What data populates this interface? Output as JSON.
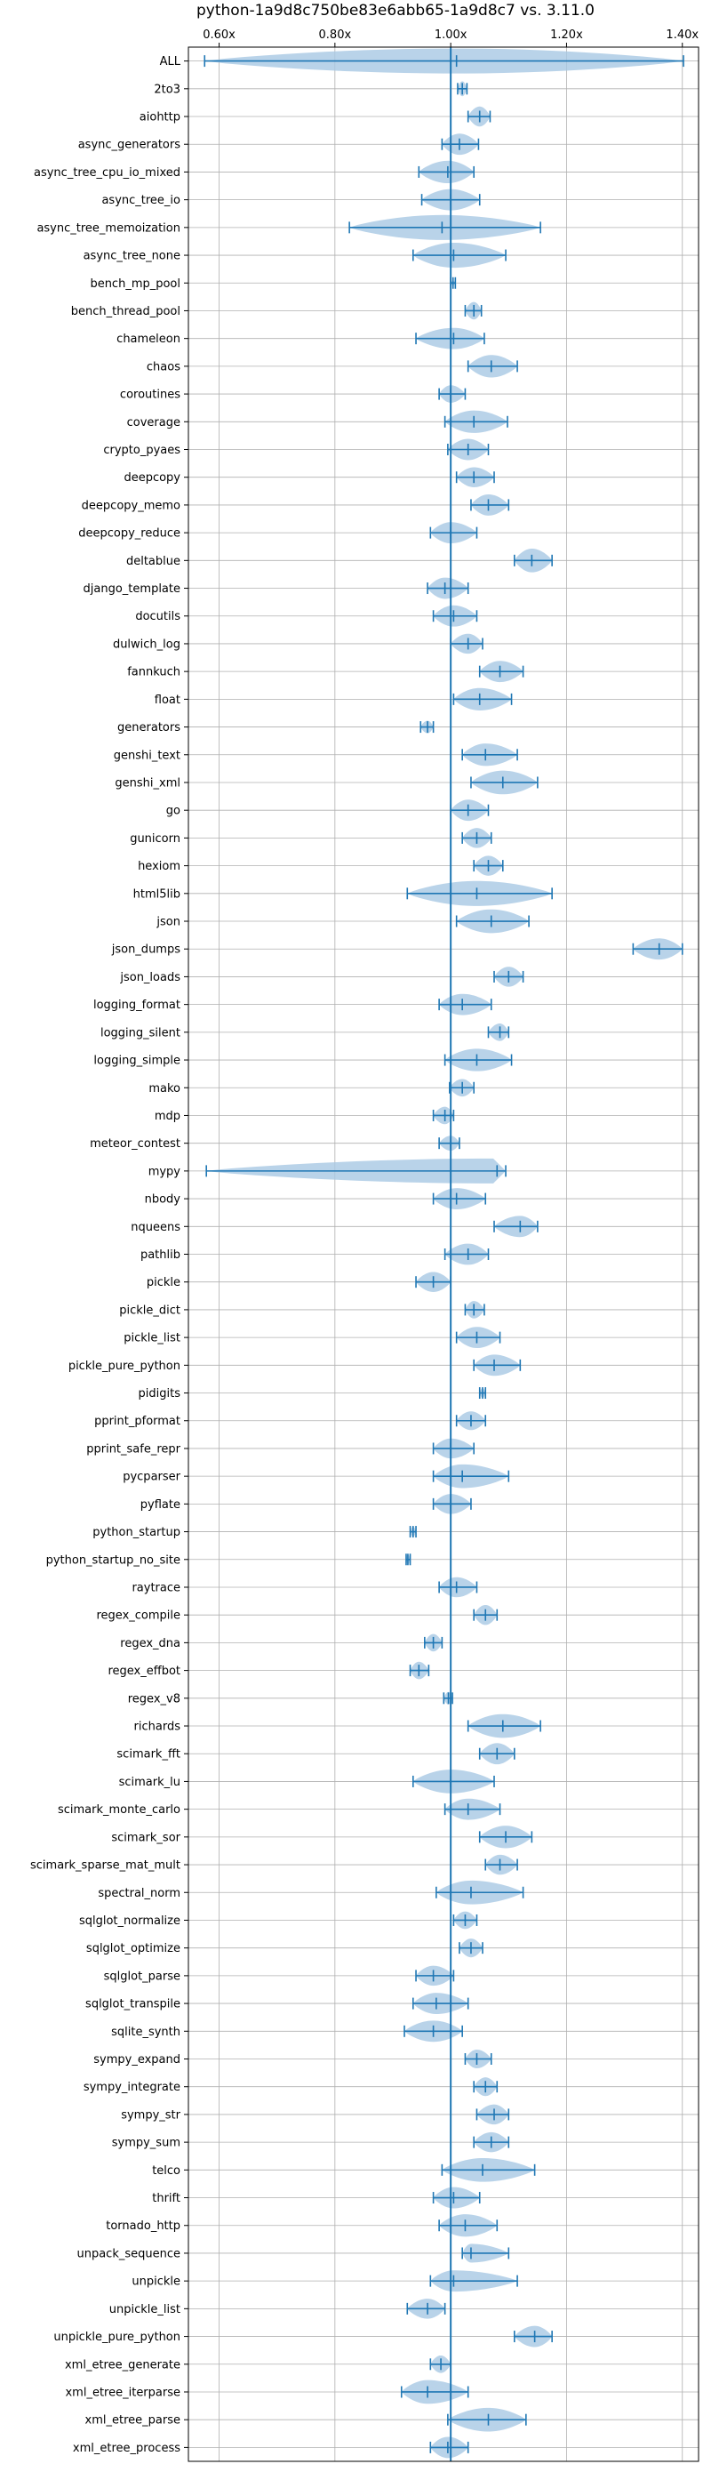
{
  "chart_data": {
    "type": "violin",
    "title": "python-1a9d8c750be83e6abb65-1a9d8c7 vs. 3.11.0",
    "xlabel": "",
    "ylabel": "",
    "xlim": [
      0.547,
      1.428
    ],
    "x_ticks": [
      0.6,
      0.8,
      1.0,
      1.2,
      1.4
    ],
    "x_tick_labels": [
      "0.60x",
      "0.80x",
      "1.00x",
      "1.20x",
      "1.40x"
    ],
    "x_tick_position": "top",
    "reference_line": 1.0,
    "grid": true,
    "colors": {
      "violin": "#a8c8e4",
      "lines": "#1f77b4",
      "grid": "#b0b0b0"
    },
    "benchmarks": [
      {
        "name": "ALL",
        "min": 0.575,
        "max": 1.402,
        "median": 1.01,
        "width": 1.0
      },
      {
        "name": "2to3",
        "min": 1.012,
        "max": 1.028,
        "median": 1.02,
        "width": 0.6
      },
      {
        "name": "aiohttp",
        "min": 1.03,
        "max": 1.068,
        "median": 1.05,
        "width": 0.8
      },
      {
        "name": "async_generators",
        "min": 0.985,
        "max": 1.048,
        "median": 1.015,
        "width": 0.85
      },
      {
        "name": "async_tree_cpu_io_mixed",
        "min": 0.945,
        "max": 1.04,
        "median": 0.995,
        "width": 0.9
      },
      {
        "name": "async_tree_io",
        "min": 0.95,
        "max": 1.05,
        "median": 1.0,
        "width": 0.85
      },
      {
        "name": "async_tree_memoization",
        "min": 0.825,
        "max": 1.155,
        "median": 0.985,
        "width": 1.0
      },
      {
        "name": "async_tree_none",
        "min": 0.935,
        "max": 1.095,
        "median": 1.005,
        "width": 1.0
      },
      {
        "name": "bench_mp_pool",
        "min": 1.0,
        "max": 1.008,
        "median": 1.004,
        "width": 0.2
      },
      {
        "name": "bench_thread_pool",
        "min": 1.025,
        "max": 1.053,
        "median": 1.04,
        "width": 0.7
      },
      {
        "name": "chameleon",
        "min": 0.94,
        "max": 1.058,
        "median": 1.005,
        "width": 0.85
      },
      {
        "name": "chaos",
        "min": 1.03,
        "max": 1.115,
        "median": 1.07,
        "width": 0.9
      },
      {
        "name": "coroutines",
        "min": 0.98,
        "max": 1.025,
        "median": 1.0,
        "width": 0.7
      },
      {
        "name": "coverage",
        "min": 0.99,
        "max": 1.098,
        "median": 1.04,
        "width": 0.9
      },
      {
        "name": "crypto_pyaes",
        "min": 0.995,
        "max": 1.065,
        "median": 1.03,
        "width": 0.85
      },
      {
        "name": "deepcopy",
        "min": 1.01,
        "max": 1.075,
        "median": 1.04,
        "width": 0.8
      },
      {
        "name": "deepcopy_memo",
        "min": 1.035,
        "max": 1.1,
        "median": 1.065,
        "width": 0.85
      },
      {
        "name": "deepcopy_reduce",
        "min": 0.965,
        "max": 1.045,
        "median": 1.0,
        "width": 0.85
      },
      {
        "name": "deltablue",
        "min": 1.11,
        "max": 1.175,
        "median": 1.14,
        "width": 0.95
      },
      {
        "name": "django_template",
        "min": 0.96,
        "max": 1.03,
        "median": 0.99,
        "width": 0.85
      },
      {
        "name": "docutils",
        "min": 0.97,
        "max": 1.045,
        "median": 1.005,
        "width": 0.85
      },
      {
        "name": "dulwich_log",
        "min": 1.0,
        "max": 1.055,
        "median": 1.03,
        "width": 0.8
      },
      {
        "name": "fannkuch",
        "min": 1.05,
        "max": 1.125,
        "median": 1.085,
        "width": 0.85
      },
      {
        "name": "float",
        "min": 1.005,
        "max": 1.105,
        "median": 1.05,
        "width": 0.9
      },
      {
        "name": "generators",
        "min": 0.948,
        "max": 0.97,
        "median": 0.96,
        "width": 0.5
      },
      {
        "name": "genshi_text",
        "min": 1.02,
        "max": 1.115,
        "median": 1.06,
        "width": 0.9
      },
      {
        "name": "genshi_xml",
        "min": 1.035,
        "max": 1.15,
        "median": 1.09,
        "width": 0.95
      },
      {
        "name": "go",
        "min": 1.0,
        "max": 1.065,
        "median": 1.03,
        "width": 0.85
      },
      {
        "name": "gunicorn",
        "min": 1.02,
        "max": 1.07,
        "median": 1.045,
        "width": 0.8
      },
      {
        "name": "hexiom",
        "min": 1.04,
        "max": 1.09,
        "median": 1.065,
        "width": 0.8
      },
      {
        "name": "html5lib",
        "min": 0.925,
        "max": 1.175,
        "median": 1.045,
        "width": 1.0
      },
      {
        "name": "json",
        "min": 1.01,
        "max": 1.135,
        "median": 1.07,
        "width": 0.95
      },
      {
        "name": "json_dumps",
        "min": 1.315,
        "max": 1.4,
        "median": 1.36,
        "width": 0.85
      },
      {
        "name": "json_loads",
        "min": 1.075,
        "max": 1.125,
        "median": 1.1,
        "width": 0.8
      },
      {
        "name": "logging_format",
        "min": 0.98,
        "max": 1.07,
        "median": 1.02,
        "width": 0.85
      },
      {
        "name": "logging_silent",
        "min": 1.065,
        "max": 1.1,
        "median": 1.085,
        "width": 0.7
      },
      {
        "name": "logging_simple",
        "min": 0.99,
        "max": 1.105,
        "median": 1.045,
        "width": 0.9
      },
      {
        "name": "mako",
        "min": 0.998,
        "max": 1.04,
        "median": 1.02,
        "width": 0.7
      },
      {
        "name": "mdp",
        "min": 0.97,
        "max": 1.005,
        "median": 0.99,
        "width": 0.7
      },
      {
        "name": "meteor_contest",
        "min": 0.98,
        "max": 1.015,
        "median": 1.0,
        "width": 0.6
      },
      {
        "name": "mypy",
        "min": 0.578,
        "max": 1.095,
        "median": 1.08,
        "width": 1.0
      },
      {
        "name": "nbody",
        "min": 0.97,
        "max": 1.06,
        "median": 1.01,
        "width": 0.85
      },
      {
        "name": "nqueens",
        "min": 1.075,
        "max": 1.15,
        "median": 1.12,
        "width": 0.85
      },
      {
        "name": "pathlib",
        "min": 0.99,
        "max": 1.065,
        "median": 1.03,
        "width": 0.85
      },
      {
        "name": "pickle",
        "min": 0.94,
        "max": 1.0,
        "median": 0.97,
        "width": 0.8
      },
      {
        "name": "pickle_dict",
        "min": 1.025,
        "max": 1.058,
        "median": 1.04,
        "width": 0.7
      },
      {
        "name": "pickle_list",
        "min": 1.01,
        "max": 1.085,
        "median": 1.045,
        "width": 0.85
      },
      {
        "name": "pickle_pure_python",
        "min": 1.04,
        "max": 1.12,
        "median": 1.075,
        "width": 0.85
      },
      {
        "name": "pidigits",
        "min": 1.05,
        "max": 1.06,
        "median": 1.055,
        "width": 0.4
      },
      {
        "name": "pprint_pformat",
        "min": 1.01,
        "max": 1.06,
        "median": 1.035,
        "width": 0.75
      },
      {
        "name": "pprint_safe_repr",
        "min": 0.97,
        "max": 1.04,
        "median": 1.0,
        "width": 0.8
      },
      {
        "name": "pycparser",
        "min": 0.97,
        "max": 1.1,
        "median": 1.02,
        "width": 0.95
      },
      {
        "name": "pyflate",
        "min": 0.97,
        "max": 1.035,
        "median": 1.0,
        "width": 0.8
      },
      {
        "name": "python_startup",
        "min": 0.93,
        "max": 0.94,
        "median": 0.935,
        "width": 0.4
      },
      {
        "name": "python_startup_no_site",
        "min": 0.923,
        "max": 0.93,
        "median": 0.926,
        "width": 0.4
      },
      {
        "name": "raytrace",
        "min": 0.98,
        "max": 1.045,
        "median": 1.01,
        "width": 0.8
      },
      {
        "name": "regex_compile",
        "min": 1.04,
        "max": 1.08,
        "median": 1.06,
        "width": 0.8
      },
      {
        "name": "regex_dna",
        "min": 0.955,
        "max": 0.985,
        "median": 0.97,
        "width": 0.7
      },
      {
        "name": "regex_effbot",
        "min": 0.93,
        "max": 0.962,
        "median": 0.945,
        "width": 0.7
      },
      {
        "name": "regex_v8",
        "min": 0.988,
        "max": 1.003,
        "median": 0.996,
        "width": 0.5
      },
      {
        "name": "richards",
        "min": 1.03,
        "max": 1.155,
        "median": 1.09,
        "width": 0.95
      },
      {
        "name": "scimark_fft",
        "min": 1.05,
        "max": 1.11,
        "median": 1.08,
        "width": 0.85
      },
      {
        "name": "scimark_lu",
        "min": 0.935,
        "max": 1.075,
        "median": 1.0,
        "width": 0.95
      },
      {
        "name": "scimark_monte_carlo",
        "min": 0.99,
        "max": 1.085,
        "median": 1.03,
        "width": 0.85
      },
      {
        "name": "scimark_sor",
        "min": 1.05,
        "max": 1.14,
        "median": 1.095,
        "width": 0.9
      },
      {
        "name": "scimark_sparse_mat_mult",
        "min": 1.06,
        "max": 1.115,
        "median": 1.085,
        "width": 0.8
      },
      {
        "name": "spectral_norm",
        "min": 0.975,
        "max": 1.125,
        "median": 1.035,
        "width": 0.95
      },
      {
        "name": "sqlglot_normalize",
        "min": 1.005,
        "max": 1.045,
        "median": 1.025,
        "width": 0.7
      },
      {
        "name": "sqlglot_optimize",
        "min": 1.015,
        "max": 1.055,
        "median": 1.035,
        "width": 0.75
      },
      {
        "name": "sqlglot_parse",
        "min": 0.94,
        "max": 1.005,
        "median": 0.97,
        "width": 0.8
      },
      {
        "name": "sqlglot_transpile",
        "min": 0.935,
        "max": 1.03,
        "median": 0.975,
        "width": 0.85
      },
      {
        "name": "sqlite_synth",
        "min": 0.92,
        "max": 1.02,
        "median": 0.97,
        "width": 0.85
      },
      {
        "name": "sympy_expand",
        "min": 1.025,
        "max": 1.07,
        "median": 1.045,
        "width": 0.75
      },
      {
        "name": "sympy_integrate",
        "min": 1.04,
        "max": 1.08,
        "median": 1.06,
        "width": 0.75
      },
      {
        "name": "sympy_str",
        "min": 1.045,
        "max": 1.1,
        "median": 1.075,
        "width": 0.8
      },
      {
        "name": "sympy_sum",
        "min": 1.04,
        "max": 1.1,
        "median": 1.07,
        "width": 0.8
      },
      {
        "name": "telco",
        "min": 0.985,
        "max": 1.145,
        "median": 1.055,
        "width": 0.95
      },
      {
        "name": "thrift",
        "min": 0.97,
        "max": 1.05,
        "median": 1.005,
        "width": 0.85
      },
      {
        "name": "tornado_http",
        "min": 0.98,
        "max": 1.08,
        "median": 1.025,
        "width": 0.9
      },
      {
        "name": "unpack_sequence",
        "min": 1.02,
        "max": 1.1,
        "median": 1.035,
        "width": 0.75
      },
      {
        "name": "unpickle",
        "min": 0.965,
        "max": 1.115,
        "median": 1.005,
        "width": 0.85
      },
      {
        "name": "unpickle_list",
        "min": 0.925,
        "max": 0.99,
        "median": 0.96,
        "width": 0.8
      },
      {
        "name": "unpickle_pure_python",
        "min": 1.11,
        "max": 1.175,
        "median": 1.145,
        "width": 0.85
      },
      {
        "name": "xml_etree_generate",
        "min": 0.965,
        "max": 1.0,
        "median": 0.983,
        "width": 0.7
      },
      {
        "name": "xml_etree_iterparse",
        "min": 0.915,
        "max": 1.03,
        "median": 0.96,
        "width": 0.95
      },
      {
        "name": "xml_etree_parse",
        "min": 0.995,
        "max": 1.13,
        "median": 1.065,
        "width": 0.95
      },
      {
        "name": "xml_etree_process",
        "min": 0.965,
        "max": 1.03,
        "median": 0.995,
        "width": 0.85
      }
    ]
  }
}
